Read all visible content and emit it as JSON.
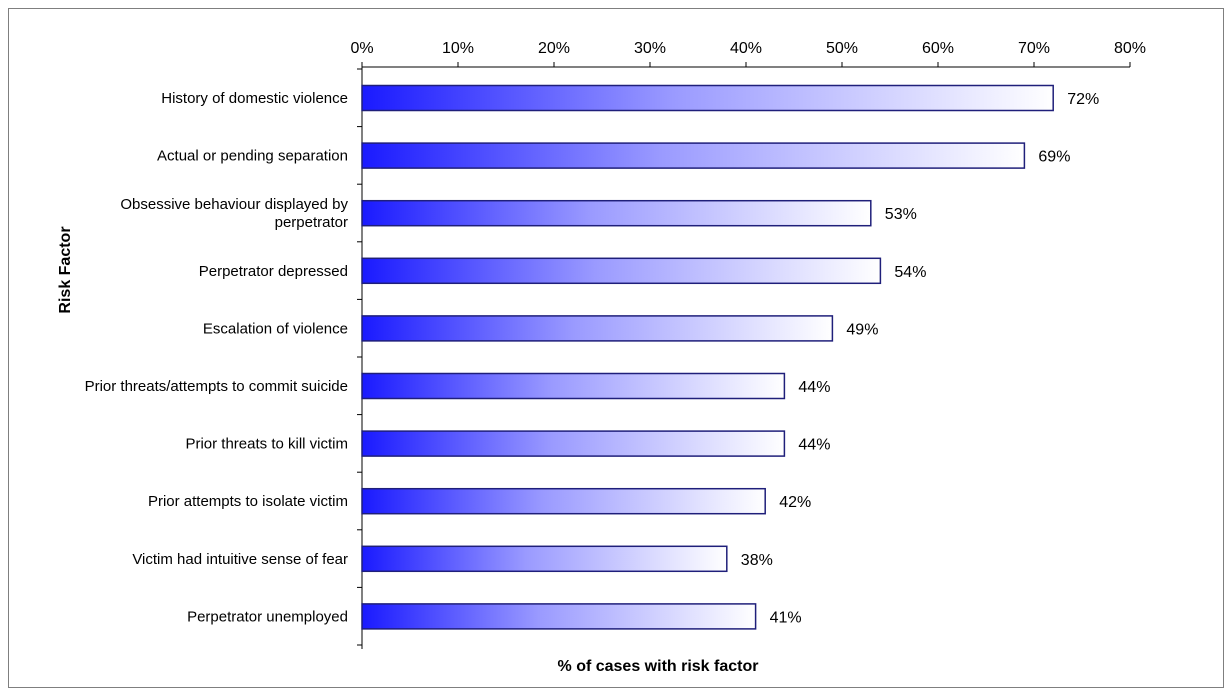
{
  "chart_data": {
    "type": "bar",
    "orientation": "horizontal",
    "categories": [
      "History of domestic violence",
      "Actual or pending separation",
      "Obsessive behaviour displayed by perpetrator",
      "Perpetrator depressed",
      "Escalation of violence",
      "Prior threats/attempts to commit suicide",
      "Prior threats to kill victim",
      "Prior attempts to isolate victim",
      "Victim had intuitive sense of fear",
      "Perpetrator unemployed"
    ],
    "category_lines": [
      [
        "History of domestic violence"
      ],
      [
        "Actual or pending separation"
      ],
      [
        "Obsessive behaviour displayed by",
        "perpetrator"
      ],
      [
        "Perpetrator depressed"
      ],
      [
        "Escalation of violence"
      ],
      [
        "Prior threats/attempts to commit suicide"
      ],
      [
        "Prior threats to kill victim"
      ],
      [
        "Prior attempts to isolate victim"
      ],
      [
        "Victim had intuitive sense of fear"
      ],
      [
        "Perpetrator unemployed"
      ]
    ],
    "values": [
      72,
      69,
      53,
      54,
      49,
      44,
      44,
      42,
      38,
      41
    ],
    "data_labels": [
      "72%",
      "69%",
      "53%",
      "54%",
      "49%",
      "44%",
      "44%",
      "42%",
      "38%",
      "41%"
    ],
    "xlim": [
      0,
      80
    ],
    "xticks": [
      0,
      10,
      20,
      30,
      40,
      50,
      60,
      70,
      80
    ],
    "xtick_labels": [
      "0%",
      "10%",
      "20%",
      "30%",
      "40%",
      "50%",
      "60%",
      "70%",
      "80%"
    ],
    "x_axis_position": "top",
    "xlabel": "% of cases with risk factor",
    "ylabel": "Risk Factor",
    "grid": false,
    "legend": "none",
    "colors": {
      "bar_gradient_start": "#1a1aff",
      "bar_gradient_end": "#ffffff",
      "bar_border": "#1f1f7a",
      "axis": "#000000",
      "frame": "#7f7f7f"
    }
  }
}
